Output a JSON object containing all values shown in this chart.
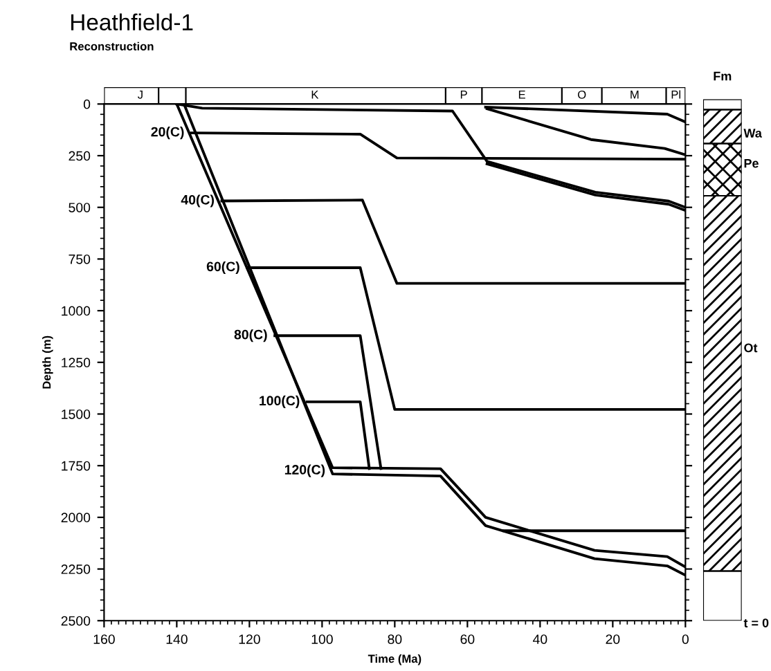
{
  "chart_data": {
    "type": "line",
    "title": "Heathfield-1",
    "subtitle": "Reconstruction",
    "xlabel": "Time (Ma)",
    "ylabel": "Depth (m)",
    "xlim": [
      160,
      0
    ],
    "xticks": [
      160,
      140,
      120,
      100,
      80,
      60,
      40,
      20,
      0
    ],
    "ylim": [
      2500,
      0
    ],
    "yticks": [
      0,
      250,
      500,
      750,
      1000,
      1250,
      1500,
      1750,
      2000,
      2250,
      2500
    ],
    "grid": false,
    "legend": false,
    "marker": "none",
    "line_style": "solid",
    "series": [
      {
        "color": "#000000",
        "x": [
          140,
          133,
          64.1,
          54.6,
          24.8,
          4.6,
          0
        ],
        "values": [
          0,
          20,
          34,
          278,
          427,
          470,
          500
        ]
      },
      {
        "color": "#000000",
        "x": [
          54.6,
          24.8,
          4.6,
          0
        ],
        "values": [
          290,
          440,
          485,
          515
        ]
      },
      {
        "color": "#000000",
        "x": [
          54.6,
          26,
          5.7,
          0
        ],
        "values": [
          23,
          172,
          215,
          246
        ]
      },
      {
        "color": "#000000",
        "x": [
          55,
          5,
          0
        ],
        "values": [
          15,
          49,
          87
        ]
      },
      {
        "color": "#000000",
        "x": [
          140,
          97.1,
          67.4,
          55,
          25,
          5,
          0
        ],
        "values": [
          0,
          1760,
          1765,
          2000,
          2160,
          2190,
          2240
        ]
      },
      {
        "color": "#000000",
        "x": [
          138,
          97.1,
          67.4,
          55,
          25,
          5,
          0
        ],
        "values": [
          0,
          1790,
          1800,
          2040,
          2200,
          2235,
          2280
        ]
      },
      {
        "color": "#000000",
        "x": [
          50,
          0
        ],
        "values": [
          2065,
          2065
        ]
      },
      {
        "color": "#000000",
        "x": [
          135.9,
          89.5,
          79.4,
          0
        ],
        "values": [
          140,
          146,
          261,
          267
        ]
      },
      {
        "color": "#000000",
        "x": [
          127.6,
          88.9,
          79.4,
          0
        ],
        "values": [
          469,
          465,
          868,
          868
        ]
      },
      {
        "color": "#000000",
        "x": [
          120.6,
          89.5,
          80,
          0
        ],
        "values": [
          792,
          792,
          1478,
          1478
        ]
      },
      {
        "color": "#000000",
        "x": [
          113,
          89.5,
          83.8
        ],
        "values": [
          1121,
          1121,
          1764
        ]
      },
      {
        "color": "#000000",
        "x": [
          104.1,
          89.5,
          87
        ],
        "values": [
          1441,
          1441,
          1764
        ]
      }
    ],
    "annotations": [
      {
        "text": "20(C)",
        "x": 135.9,
        "y": 140
      },
      {
        "text": "40(C)",
        "x": 127.6,
        "y": 469
      },
      {
        "text": "60(C)",
        "x": 120.6,
        "y": 792
      },
      {
        "text": "80(C)",
        "x": 113,
        "y": 1121
      },
      {
        "text": "100(C)",
        "x": 104.1,
        "y": 1441
      },
      {
        "text": "120(C)",
        "x": 97.1,
        "y": 1775
      },
      "J",
      "K",
      "P",
      "E",
      "O",
      "M",
      "Pl",
      "Fm",
      "Wa",
      "Pe",
      "Ot",
      "t = 0"
    ]
  }
}
